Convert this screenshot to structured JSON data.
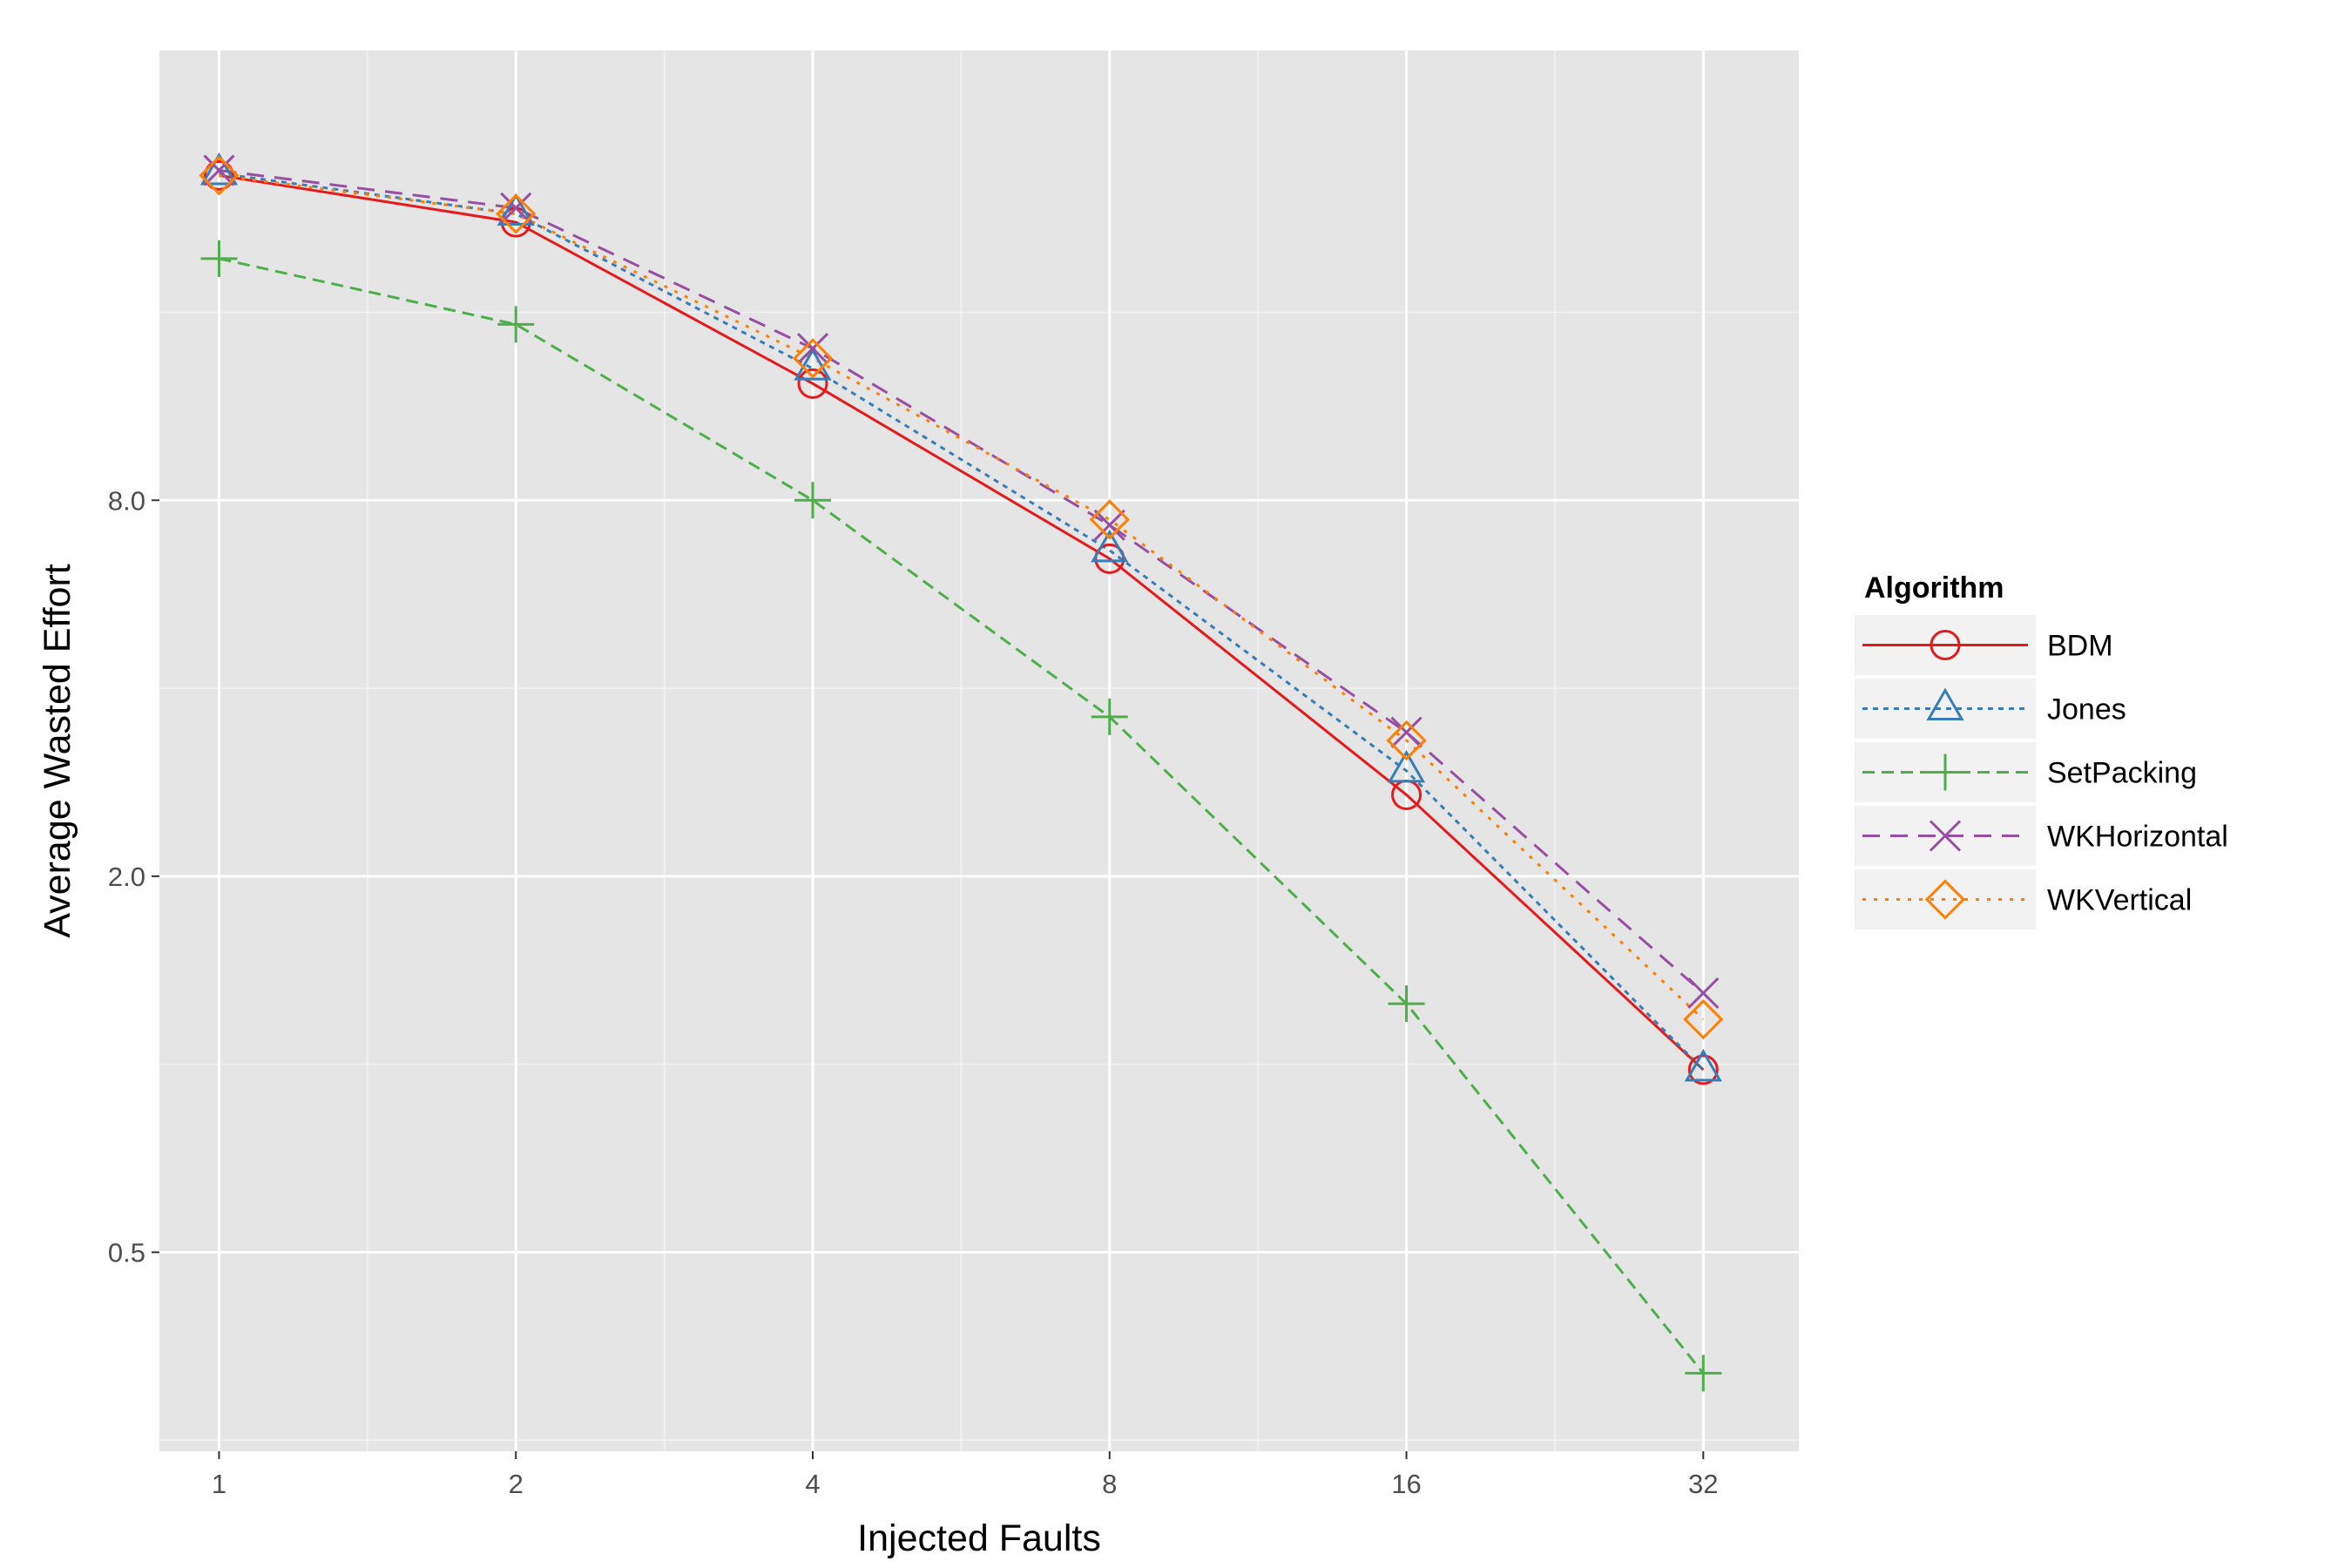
{
  "chart_data": {
    "type": "line",
    "xlabel": "Injected Faults",
    "ylabel": "Average Wasted Effort",
    "x_scale": "log2",
    "y_scale": "log2",
    "x": [
      1,
      2,
      4,
      8,
      16,
      32
    ],
    "x_tick_labels": [
      "1",
      "2",
      "4",
      "8",
      "16",
      "32"
    ],
    "y_ticks": [
      0.5,
      2.0,
      8.0
    ],
    "y_tick_labels": [
      "0.5",
      "2.0",
      "8.0"
    ],
    "xlim": [
      0.87,
      40
    ],
    "ylim": [
      0.24,
      42
    ],
    "grid": true,
    "legend": {
      "title": "Algorithm",
      "position": "right"
    },
    "series": [
      {
        "name": "BDM",
        "color": "#e41a1c",
        "dash": "solid",
        "marker": "circle",
        "values": [
          26.5,
          22.3,
          12.3,
          6.45,
          2.7,
          0.98
        ]
      },
      {
        "name": "Jones",
        "color": "#377eb8",
        "dash": "dotted-short",
        "marker": "triangle",
        "values": [
          26.7,
          23.0,
          13.0,
          6.65,
          2.95,
          0.98
        ]
      },
      {
        "name": "SetPacking",
        "color": "#4daf4a",
        "dash": "dashed",
        "marker": "plus",
        "values": [
          19.5,
          15.3,
          8.0,
          3.6,
          1.25,
          0.32
        ]
      },
      {
        "name": "WKHorizontal",
        "color": "#984ea3",
        "dash": "dashed-long",
        "marker": "cross",
        "values": [
          27.0,
          23.5,
          14.0,
          7.3,
          3.4,
          1.3
        ]
      },
      {
        "name": "WKVertical",
        "color": "#ff7f00",
        "dash": "dotted",
        "marker": "diamond",
        "values": [
          26.5,
          23.0,
          13.5,
          7.45,
          3.3,
          1.18
        ]
      }
    ]
  }
}
